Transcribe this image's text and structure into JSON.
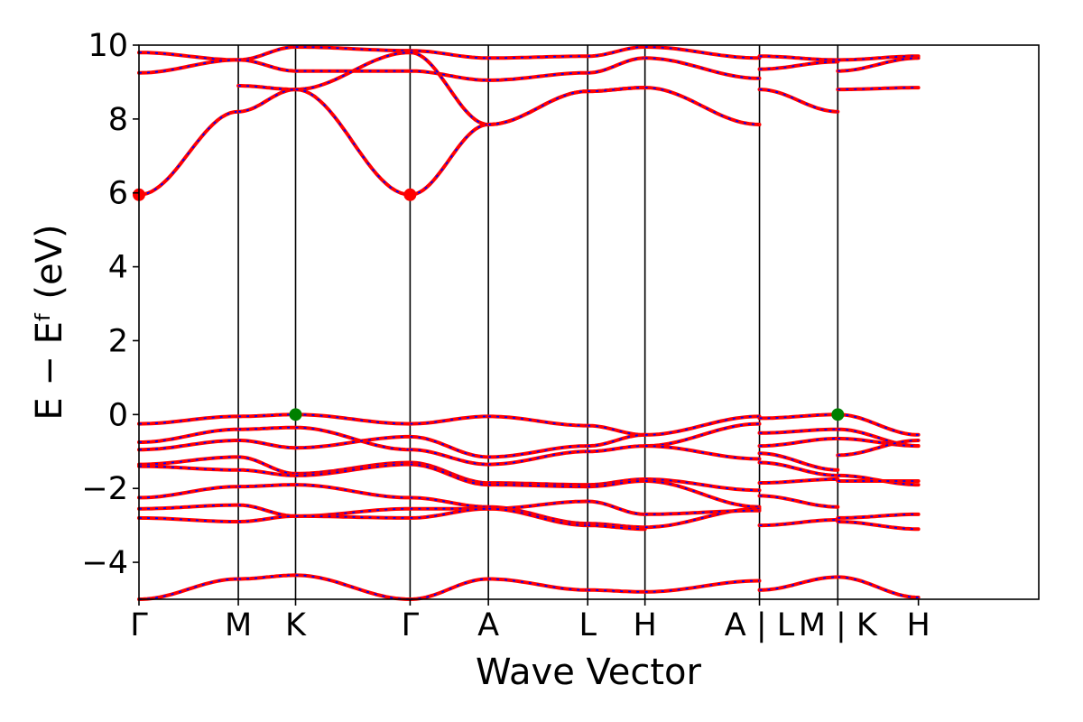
{
  "chart_data": {
    "type": "line",
    "title": "",
    "xlabel": "Wave Vector",
    "ylabel": "E − Eᶠ (eV)",
    "ylim": [
      -5,
      10
    ],
    "yticks": [
      -4,
      -2,
      0,
      2,
      4,
      6,
      8,
      10
    ],
    "ytick_labels": [
      "−4",
      "−2",
      "0",
      "2",
      "4",
      "6",
      "8",
      "10"
    ],
    "xlim": [
      0,
      7.7
    ],
    "high_symmetry_points": [
      {
        "label": "Γ",
        "x": 0
      },
      {
        "label": "M",
        "x": 0.85
      },
      {
        "label": "K",
        "x": 1.34
      },
      {
        "label": "Γ",
        "x": 2.32
      },
      {
        "label": "A",
        "x": 2.99
      },
      {
        "label": "L",
        "x": 3.84
      },
      {
        "label": "H",
        "x": 4.33
      },
      {
        "label": "A | L",
        "x": 5.31
      },
      {
        "label": "M | K",
        "x": 5.98
      },
      {
        "label": "H",
        "x": 6.67
      }
    ],
    "vertical_lines_x": [
      0.85,
      1.34,
      2.32,
      2.99,
      3.84,
      4.33,
      5.31,
      5.98
    ],
    "band_color": "#ff0000",
    "band_dash_color": "#0000ff",
    "cbm_marker_color": "#ff0000",
    "vbm_marker_color": "#008000",
    "markers": [
      {
        "type": "CBM",
        "x": 0,
        "y": 5.95
      },
      {
        "type": "CBM",
        "x": 2.32,
        "y": 5.95
      },
      {
        "type": "VBM",
        "x": 1.34,
        "y": 0.0
      },
      {
        "type": "VBM",
        "x": 5.98,
        "y": 0.0
      }
    ],
    "segments": [
      {
        "x0": 0,
        "x1": 0.85,
        "bands": [
          [
            9.8,
            9.6
          ],
          [
            9.25,
            9.6
          ],
          [
            5.95,
            8.2
          ],
          [
            -0.25,
            -0.05
          ],
          [
            -0.75,
            -0.4
          ],
          [
            -0.95,
            -0.7
          ],
          [
            -1.35,
            -1.15
          ],
          [
            -1.4,
            -1.5
          ],
          [
            -2.25,
            -1.95
          ],
          [
            -2.55,
            -2.45
          ],
          [
            -2.8,
            -2.9
          ],
          [
            -5.0,
            -4.45
          ]
        ]
      },
      {
        "x0": 0.85,
        "x1": 1.34,
        "bands": [
          [
            9.6,
            9.95
          ],
          [
            9.6,
            9.3
          ],
          [
            8.9,
            8.8
          ],
          [
            8.2,
            8.8
          ],
          [
            -0.05,
            0.0
          ],
          [
            -0.4,
            -0.35
          ],
          [
            -0.7,
            -0.9
          ],
          [
            -1.15,
            -1.6
          ],
          [
            -1.5,
            -1.65
          ],
          [
            -1.95,
            -1.9
          ],
          [
            -2.45,
            -2.75
          ],
          [
            -2.9,
            -2.75
          ],
          [
            -4.45,
            -4.35
          ]
        ]
      },
      {
        "x0": 1.34,
        "x1": 2.32,
        "bands": [
          [
            9.95,
            9.85
          ],
          [
            9.3,
            9.3
          ],
          [
            8.8,
            9.8
          ],
          [
            8.8,
            5.95
          ],
          [
            0.0,
            -0.25
          ],
          [
            -0.35,
            -0.95
          ],
          [
            -0.9,
            -0.6
          ],
          [
            -1.6,
            -1.3
          ],
          [
            -1.65,
            -1.35
          ],
          [
            -1.9,
            -2.25
          ],
          [
            -2.75,
            -2.55
          ],
          [
            -2.75,
            -2.8
          ],
          [
            -4.35,
            -5.0
          ]
        ]
      },
      {
        "x0": 2.32,
        "x1": 2.99,
        "bands": [
          [
            9.85,
            9.65
          ],
          [
            9.3,
            9.05
          ],
          [
            9.8,
            7.85
          ],
          [
            5.95,
            7.85
          ],
          [
            -0.25,
            -0.05
          ],
          [
            -0.6,
            -1.15
          ],
          [
            -0.95,
            -1.35
          ],
          [
            -1.3,
            -1.85
          ],
          [
            -1.35,
            -1.9
          ],
          [
            -2.25,
            -2.5
          ],
          [
            -2.55,
            -2.55
          ],
          [
            -2.8,
            -2.55
          ],
          [
            -5.0,
            -4.45
          ]
        ]
      },
      {
        "x0": 2.99,
        "x1": 3.84,
        "bands": [
          [
            9.65,
            9.7
          ],
          [
            9.05,
            9.25
          ],
          [
            7.85,
            8.75
          ],
          [
            7.85,
            8.75
          ],
          [
            -0.05,
            -0.3
          ],
          [
            -1.15,
            -0.85
          ],
          [
            -1.35,
            -1.0
          ],
          [
            -1.85,
            -1.9
          ],
          [
            -1.9,
            -1.95
          ],
          [
            -2.5,
            -2.95
          ],
          [
            -2.55,
            -2.35
          ],
          [
            -2.55,
            -3.0
          ],
          [
            -4.45,
            -4.75
          ]
        ]
      },
      {
        "x0": 3.84,
        "x1": 4.33,
        "bands": [
          [
            9.7,
            9.95
          ],
          [
            9.25,
            9.65
          ],
          [
            8.75,
            8.85
          ],
          [
            8.75,
            8.85
          ],
          [
            -0.3,
            -0.55
          ],
          [
            -0.85,
            -0.55
          ],
          [
            -1.0,
            -0.85
          ],
          [
            -1.9,
            -1.75
          ],
          [
            -1.95,
            -1.8
          ],
          [
            -2.95,
            -3.05
          ],
          [
            -2.35,
            -2.7
          ],
          [
            -3.0,
            -3.1
          ],
          [
            -4.75,
            -4.8
          ]
        ]
      },
      {
        "x0": 4.33,
        "x1": 5.31,
        "bands": [
          [
            9.95,
            9.65
          ],
          [
            9.65,
            9.1
          ],
          [
            8.85,
            7.85
          ],
          [
            -0.55,
            -0.05
          ],
          [
            -0.85,
            -0.25
          ],
          [
            -0.85,
            -1.2
          ],
          [
            -1.75,
            -2.05
          ],
          [
            -1.8,
            -2.5
          ],
          [
            -3.05,
            -2.55
          ],
          [
            -2.7,
            -2.6
          ],
          [
            -4.8,
            -4.5
          ]
        ]
      },
      {
        "x0": 5.31,
        "x1": 5.98,
        "bands": [
          [
            9.7,
            9.6
          ],
          [
            9.35,
            9.55
          ],
          [
            8.8,
            8.2
          ],
          [
            -0.1,
            0.0
          ],
          [
            -0.5,
            -0.4
          ],
          [
            -0.85,
            -0.65
          ],
          [
            -1.05,
            -1.5
          ],
          [
            -1.3,
            -1.65
          ],
          [
            -1.85,
            -1.75
          ],
          [
            -2.2,
            -2.5
          ],
          [
            -3.0,
            -2.85
          ],
          [
            -4.75,
            -4.4
          ]
        ]
      },
      {
        "x0": 5.98,
        "x1": 6.67,
        "bands": [
          [
            9.6,
            9.7
          ],
          [
            9.3,
            9.65
          ],
          [
            8.8,
            8.85
          ],
          [
            0.0,
            -0.55
          ],
          [
            -0.4,
            -0.85
          ],
          [
            -0.65,
            -0.85
          ],
          [
            -1.1,
            -0.7
          ],
          [
            -1.65,
            -1.9
          ],
          [
            -1.8,
            -1.8
          ],
          [
            -2.8,
            -2.7
          ],
          [
            -2.9,
            -3.1
          ],
          [
            -4.4,
            -4.95
          ]
        ]
      }
    ]
  }
}
